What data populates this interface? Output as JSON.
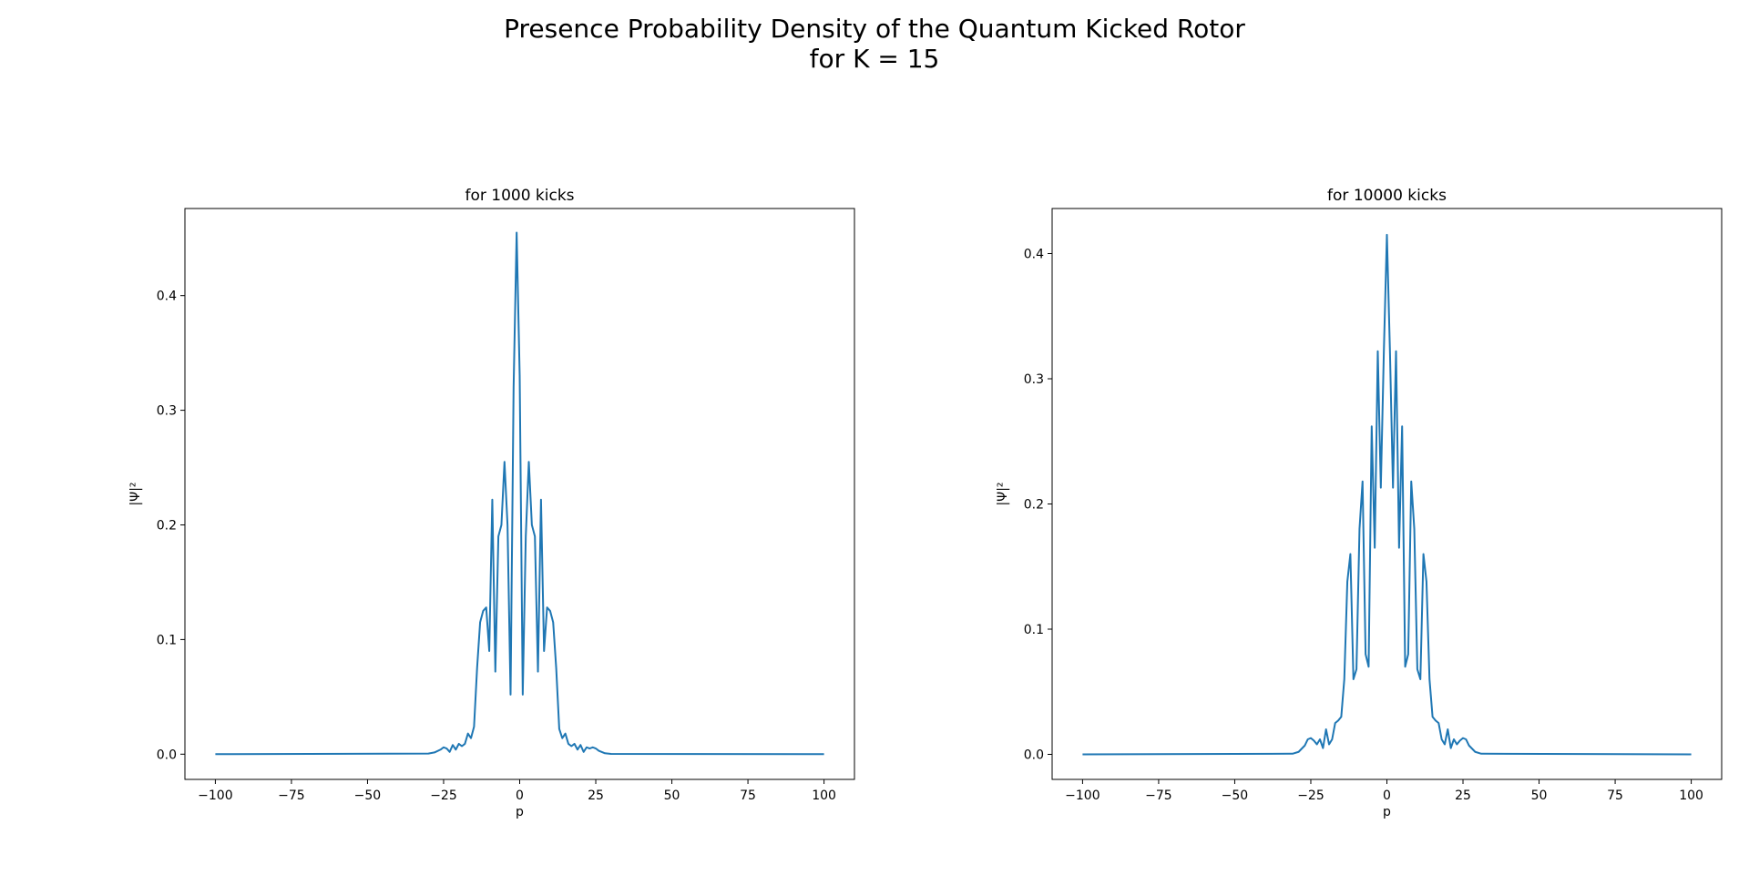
{
  "figure": {
    "title_line1": "Presence Probability Density of the Quantum Kicked Rotor",
    "title_line2": "for K = 15"
  },
  "colors": {
    "line": "#1f77b4",
    "axes": "#000000",
    "background": "#ffffff"
  },
  "chart_data": [
    {
      "type": "line",
      "title": "for 1000 kicks",
      "xlabel": "p",
      "ylabel": "|Ψ|²",
      "xlim": [
        -110,
        110
      ],
      "ylim": [
        -0.022,
        0.476
      ],
      "xticks": [
        -100,
        -75,
        -50,
        -25,
        0,
        25,
        50,
        75,
        100
      ],
      "xtick_labels": [
        "−100",
        "−75",
        "−50",
        "−25",
        "0",
        "25",
        "50",
        "75",
        "100"
      ],
      "yticks": [
        0.0,
        0.1,
        0.2,
        0.3,
        0.4
      ],
      "ytick_labels": [
        "0.0",
        "0.1",
        "0.2",
        "0.3",
        "0.4"
      ],
      "grid": false,
      "series": [
        {
          "x": [
            -100,
            -30,
            -28,
            -26,
            -25,
            -24,
            -23,
            -22,
            -21,
            -20,
            -19,
            -18,
            -17,
            -16,
            -15,
            -14,
            -13,
            -12,
            -11,
            -10,
            -9,
            -8,
            -7,
            -6,
            -5,
            -4,
            -3,
            -2,
            -1,
            0,
            1,
            2,
            3,
            4,
            5,
            6,
            7,
            8,
            9,
            10,
            11,
            12,
            13,
            14,
            15,
            16,
            17,
            18,
            19,
            20,
            21,
            22,
            23,
            24,
            25,
            26,
            28,
            30,
            100
          ],
          "y": [
            0.0,
            0.0005,
            0.0015,
            0.004,
            0.006,
            0.005,
            0.002,
            0.008,
            0.004,
            0.009,
            0.007,
            0.009,
            0.018,
            0.014,
            0.024,
            0.075,
            0.115,
            0.125,
            0.128,
            0.09,
            0.222,
            0.072,
            0.19,
            0.2,
            0.255,
            0.2,
            0.052,
            0.32,
            0.455,
            0.33,
            0.052,
            0.19,
            0.255,
            0.2,
            0.19,
            0.072,
            0.222,
            0.09,
            0.128,
            0.125,
            0.115,
            0.075,
            0.022,
            0.014,
            0.018,
            0.009,
            0.007,
            0.009,
            0.004,
            0.008,
            0.002,
            0.006,
            0.005,
            0.006,
            0.005,
            0.003,
            0.0008,
            0.0002,
            0.0
          ]
        }
      ]
    },
    {
      "type": "line",
      "title": "for 10000 kicks",
      "xlabel": "p",
      "ylabel": "|Ψ|²",
      "xlim": [
        -110,
        110
      ],
      "ylim": [
        -0.02,
        0.436
      ],
      "xticks": [
        -100,
        -75,
        -50,
        -25,
        0,
        25,
        50,
        75,
        100
      ],
      "xtick_labels": [
        "−100",
        "−75",
        "−50",
        "−25",
        "0",
        "25",
        "50",
        "75",
        "100"
      ],
      "yticks": [
        0.0,
        0.1,
        0.2,
        0.3,
        0.4
      ],
      "ytick_labels": [
        "0.0",
        "0.1",
        "0.2",
        "0.3",
        "0.4"
      ],
      "grid": false,
      "series": [
        {
          "x": [
            -100,
            -31,
            -29,
            -27,
            -26,
            -25,
            -24,
            -23,
            -22,
            -21,
            -20,
            -19,
            -18,
            -17,
            -16,
            -15,
            -14,
            -13,
            -12,
            -11,
            -10,
            -9,
            -8,
            -7,
            -6,
            -5,
            -4,
            -3,
            -2,
            -1,
            0,
            1,
            2,
            3,
            4,
            5,
            6,
            7,
            8,
            9,
            10,
            11,
            12,
            13,
            14,
            15,
            16,
            17,
            18,
            19,
            20,
            21,
            22,
            23,
            24,
            25,
            26,
            27,
            29,
            31,
            100
          ],
          "y": [
            0.0,
            0.0005,
            0.002,
            0.007,
            0.012,
            0.013,
            0.011,
            0.008,
            0.012,
            0.005,
            0.02,
            0.008,
            0.012,
            0.025,
            0.027,
            0.03,
            0.06,
            0.138,
            0.16,
            0.06,
            0.068,
            0.18,
            0.218,
            0.08,
            0.07,
            0.262,
            0.165,
            0.322,
            0.213,
            0.322,
            0.415,
            0.322,
            0.213,
            0.322,
            0.165,
            0.262,
            0.07,
            0.08,
            0.218,
            0.18,
            0.068,
            0.06,
            0.16,
            0.138,
            0.06,
            0.03,
            0.027,
            0.025,
            0.012,
            0.008,
            0.02,
            0.005,
            0.012,
            0.008,
            0.011,
            0.013,
            0.012,
            0.007,
            0.002,
            0.0005,
            0.0
          ]
        }
      ]
    }
  ]
}
